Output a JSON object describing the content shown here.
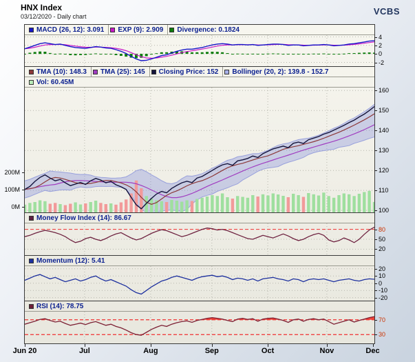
{
  "header": {
    "title": "HNX Index",
    "subtitle": "03/12/2020 - Daily chart",
    "brand": "VCBS"
  },
  "x_axis": {
    "ticks": [
      {
        "label": "Jun 20",
        "f": 0
      },
      {
        "label": "Jul",
        "f": 0.171
      },
      {
        "label": "Aug",
        "f": 0.36
      },
      {
        "label": "Sep",
        "f": 0.535
      },
      {
        "label": "Oct",
        "f": 0.695
      },
      {
        "label": "Nov",
        "f": 0.864
      },
      {
        "label": "Dec",
        "f": 0.995
      }
    ]
  },
  "chart_data": [
    {
      "id": "macd",
      "type": "line",
      "legend": [
        {
          "label": "MACD (26, 12): 3.091",
          "color": "#1616c8"
        },
        {
          "label": "EXP (9): 2.909",
          "color": "#c818c8"
        },
        {
          "label": "Divergence: 0.1824",
          "color": "#0c7c0c"
        }
      ],
      "ylim": [
        -2.9,
        4.4
      ],
      "yticks": [
        {
          "v": 4,
          "label": "4",
          "grid": "dot"
        },
        {
          "v": 2,
          "label": "2",
          "grid": "dot"
        },
        {
          "v": 0,
          "label": "0",
          "grid": "dot"
        },
        {
          "v": -2,
          "label": "-2",
          "grid": "dot"
        }
      ],
      "colors": {
        "macd": "#1616c8",
        "exp": "#c818c8",
        "histogram": "#0c7c0c"
      },
      "series": {
        "macd": [
          1.2,
          1.6,
          2.0,
          2.4,
          2.6,
          2.4,
          2.2,
          2.3,
          2.0,
          1.7,
          1.5,
          1.4,
          1.3,
          1.5,
          1.7,
          1.6,
          1.4,
          1.3,
          1.0,
          0.6,
          0.1,
          -0.6,
          -1.2,
          -1.6,
          -1.5,
          -1.2,
          -0.8,
          -0.4,
          -0.2,
          0.2,
          0.6,
          0.9,
          1.1,
          1.1,
          1.3,
          1.5,
          1.8,
          2.1,
          2.3,
          2.4,
          2.3,
          2.1,
          2.2,
          2.2,
          2.1,
          2.2,
          2.0,
          2.1,
          2.2,
          2.3,
          2.3,
          2.2,
          2.0,
          2.1,
          2.1,
          1.9,
          2.0,
          2.1,
          2.1,
          2.2,
          2.1,
          1.9,
          2.0,
          2.1,
          2.3,
          2.4,
          2.6,
          2.8,
          3.0,
          3.091
        ]
      }
    },
    {
      "id": "price",
      "type": "line",
      "legend": [
        {
          "label": "TMA (10): 148.3",
          "color": "#8c3838"
        },
        {
          "label": "TMA (25): 145",
          "color": "#a03cc0"
        },
        {
          "label": "Closing Price: 152",
          "color": "#14143c"
        },
        {
          "label": "Bollinger (20, 2): 139.8 - 152.7",
          "color": "#a8b0e8"
        }
      ],
      "legend2": [
        {
          "label": "Vol: 60.45M",
          "color": "#b8ecb8"
        }
      ],
      "ylim": [
        99,
        161.5
      ],
      "yticks": [
        {
          "v": 160,
          "label": "160",
          "grid": "dot"
        },
        {
          "v": 150,
          "label": "150",
          "grid": "dot"
        },
        {
          "v": 140,
          "label": "140",
          "grid": "dot"
        },
        {
          "v": 130,
          "label": "130",
          "grid": "dot"
        },
        {
          "v": 120,
          "label": "120",
          "grid": "dot"
        },
        {
          "v": 110,
          "label": "110",
          "grid": "dot"
        },
        {
          "v": 100,
          "label": "100",
          "grid": "dot"
        }
      ],
      "vol_ticks": [
        {
          "v": 200,
          "label": "200M"
        },
        {
          "v": 100,
          "label": "100M"
        },
        {
          "v": 0,
          "label": "0M"
        }
      ],
      "colors": {
        "close": "#14143c",
        "tma10": "#8c3838",
        "tma25": "#a03cc0",
        "band_fill": "rgba(136,146,222,0.38)",
        "band_edge": "#98a0dc",
        "vol_up": "#9fdf9f",
        "vol_down": "#f29a9a"
      },
      "series": {
        "close": [
          110.5,
          112,
          114.5,
          116.5,
          117.8,
          116.2,
          114.8,
          115.5,
          113.8,
          112.4,
          113.2,
          114,
          113,
          114.8,
          116,
          115.2,
          113.8,
          114.5,
          112.8,
          111.8,
          110.5,
          106.5,
          102.8,
          100.8,
          103.5,
          106,
          108.2,
          109.5,
          108.8,
          111,
          112.5,
          113.8,
          114.6,
          113.9,
          116.2,
          117,
          118.5,
          120,
          121.5,
          122.8,
          123.4,
          122.6,
          124.8,
          125.3,
          126,
          127.2,
          126.5,
          128.4,
          129.6,
          130.8,
          131.5,
          132.2,
          131.4,
          133.6,
          134.2,
          133.5,
          135.4,
          136.2,
          137,
          138.2,
          139,
          140.2,
          141.4,
          142.6,
          144,
          145.2,
          146.8,
          148.2,
          150,
          152
        ],
        "volume": [
          45,
          55,
          60,
          70,
          65,
          50,
          55,
          48,
          42,
          50,
          58,
          46,
          52,
          60,
          68,
          55,
          48,
          52,
          45,
          58,
          75,
          110,
          185,
          140,
          95,
          80,
          70,
          65,
          60,
          72,
          68,
          62,
          70,
          66,
          78,
          85,
          92,
          100,
          95,
          110,
          88,
          80,
          95,
          90,
          85,
          100,
          92,
          105,
          98,
          110,
          104,
          96,
          88,
          108,
          100,
          90,
          112,
          105,
          98,
          115,
          95,
          85,
          100,
          110,
          105,
          95,
          108,
          118,
          125,
          60.45
        ]
      }
    },
    {
      "id": "mfi",
      "type": "line",
      "legend": [
        {
          "label": "Money Flow Index (14): 86.67",
          "color": "#5e1f42"
        }
      ],
      "ylim": [
        2,
        98
      ],
      "yticks": [
        {
          "v": 80,
          "label": "80",
          "grid": "red",
          "labelColor": "#cc3300"
        },
        {
          "v": 50,
          "label": "50",
          "grid": "dot"
        },
        {
          "v": 20,
          "label": "20",
          "grid": "dot"
        }
      ],
      "colors": {
        "mfi": "#6e2240"
      },
      "series": {
        "mfi": [
          58,
          62,
          68,
          73,
          77,
          74,
          70,
          65,
          58,
          48,
          40,
          44,
          52,
          56,
          50,
          46,
          52,
          60,
          66,
          70,
          62,
          54,
          48,
          52,
          60,
          68,
          74,
          79,
          76,
          70,
          64,
          58,
          62,
          68,
          74,
          80,
          84,
          82,
          78,
          80,
          76,
          70,
          64,
          58,
          52,
          50,
          56,
          62,
          58,
          54,
          60,
          66,
          60,
          52,
          46,
          50,
          58,
          64,
          68,
          62,
          48,
          42,
          46,
          54,
          48,
          40,
          50,
          65,
          78,
          86.67
        ]
      }
    },
    {
      "id": "momentum",
      "type": "line",
      "legend": [
        {
          "label": "Momentum (12): 5.41",
          "color": "#1c2f9e"
        }
      ],
      "ylim": [
        -24,
        23.5
      ],
      "yticks": [
        {
          "v": 20,
          "label": "20",
          "grid": "dot"
        },
        {
          "v": 10,
          "label": "10",
          "grid": "dot"
        },
        {
          "v": 0,
          "label": "0",
          "grid": "dot"
        },
        {
          "v": -10,
          "label": "-10",
          "grid": "dot"
        },
        {
          "v": -20,
          "label": "-20",
          "grid": "dot"
        }
      ],
      "colors": {
        "momentum": "#1c2f9e"
      },
      "series": {
        "momentum": [
          4,
          7,
          10,
          12,
          9,
          6,
          8,
          5,
          2,
          4,
          6,
          3,
          5,
          8,
          10,
          6,
          3,
          5,
          2,
          -1,
          -4,
          -9,
          -13,
          -15,
          -10,
          -5,
          -1,
          3,
          5,
          8,
          10,
          8,
          6,
          4,
          7,
          9,
          10,
          11,
          9,
          10,
          8,
          5,
          7,
          6,
          4,
          6,
          3,
          6,
          7,
          8,
          6,
          5,
          3,
          6,
          5,
          2,
          5,
          6,
          5,
          6,
          4,
          2,
          4,
          5,
          6,
          4,
          3,
          5,
          6,
          5.41
        ]
      }
    },
    {
      "id": "rsi",
      "type": "line+area",
      "legend": [
        {
          "label": "RSI (14): 78.75",
          "color": "#6e1e38"
        }
      ],
      "ylim": [
        6,
        92
      ],
      "yticks": [
        {
          "v": 70,
          "label": "70",
          "grid": "red",
          "labelColor": "#cc3300"
        },
        {
          "v": 30,
          "label": "30",
          "grid": "red",
          "labelColor": "#cc3300"
        }
      ],
      "thresholds": {
        "upper": 70,
        "lower": 30
      },
      "colors": {
        "rsi": "#7c1f33",
        "fill": "#ee4438"
      },
      "series": {
        "rsi": [
          58,
          62,
          66,
          71,
          73,
          68,
          64,
          66,
          60,
          55,
          58,
          61,
          57,
          62,
          65,
          60,
          55,
          58,
          52,
          48,
          42,
          35,
          30,
          28,
          36,
          44,
          50,
          55,
          52,
          58,
          62,
          65,
          67,
          63,
          68,
          71,
          74,
          76,
          74,
          72,
          68,
          65,
          72,
          74,
          71,
          73,
          66,
          72,
          74,
          75,
          72,
          68,
          63,
          70,
          72,
          66,
          71,
          73,
          70,
          72,
          65,
          58,
          62,
          66,
          70,
          64,
          68,
          72,
          76,
          78.75
        ]
      }
    }
  ]
}
